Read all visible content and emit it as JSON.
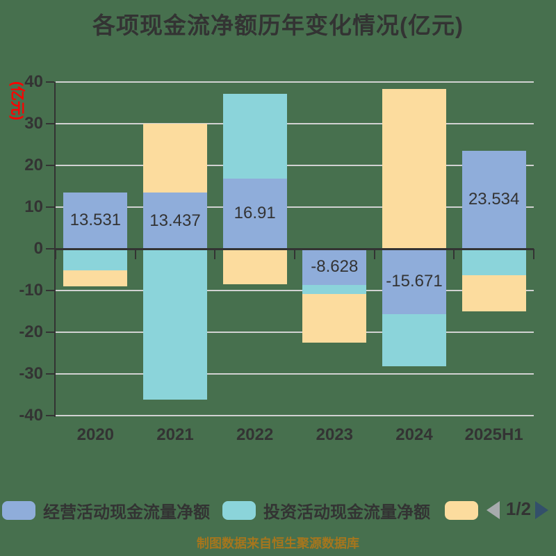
{
  "title": "各项现金流净额历年变化情况(亿元)",
  "colors": {
    "background": "#47704e",
    "grid_line": "#d2d2d2",
    "axis_line": "#333333",
    "text": "#333333",
    "y_axis_name": "#fe0000",
    "footer_text": "#a6761d",
    "pager_prev_arrow": "#a7abad",
    "pager_next_arrow": "#33506a"
  },
  "chart_data": {
    "type": "bar",
    "stacked": true,
    "title": "各项现金流净额历年变化情况(亿元)",
    "ylabel": "(亿元)",
    "xlabel": "",
    "ylim": [
      -40,
      40
    ],
    "y_tick_step": 10,
    "y_tick_labels": [
      "40",
      "30",
      "20",
      "10",
      "0",
      "-10",
      "-20",
      "-30",
      "-40"
    ],
    "grid": true,
    "legend_position": "bottom",
    "categories": [
      "2020",
      "2021",
      "2022",
      "2023",
      "2024",
      "2025H1"
    ],
    "series": [
      {
        "name": "经营活动现金流量净额",
        "color": "#8fadda",
        "values": [
          13.531,
          13.437,
          16.91,
          -8.628,
          -15.671,
          23.534
        ],
        "data_labels": [
          "13.531",
          "13.437",
          "16.91",
          "-8.628",
          "-15.671",
          "23.534"
        ]
      },
      {
        "name": "投资活动现金流量净额",
        "color": "#8bd4da",
        "values": [
          -5.2,
          -36.1,
          20.3,
          -2.2,
          -12.5,
          -6.3
        ],
        "data_labels": null
      },
      {
        "name": "",
        "color": "#fcdc9e",
        "values": [
          -3.8,
          16.5,
          -8.5,
          -11.7,
          38.3,
          -8.7
        ],
        "data_labels": null
      }
    ]
  },
  "legend": {
    "items": [
      {
        "label": "经营活动现金流量净额",
        "color": "#8fadda"
      },
      {
        "label": "投资活动现金流量净额",
        "color": "#8bd4da"
      },
      {
        "label": "",
        "color": "#fcdc9e"
      }
    ],
    "pager": {
      "page": "1/2",
      "prev_icon": "left-triangle-icon",
      "next_icon": "right-triangle-icon"
    }
  },
  "footer": {
    "text": "制图数据来自恒生聚源数据库"
  }
}
